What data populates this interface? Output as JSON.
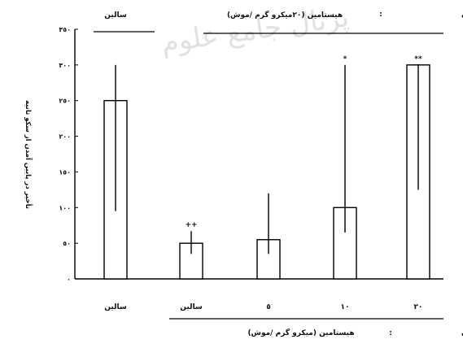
{
  "chart_data": {
    "type": "bar",
    "title": "",
    "ylabel": "تأخیر در پایین آمدن از سکو ثانیه",
    "ylim": [
      0,
      350
    ],
    "yticks": [
      0,
      50,
      100,
      150,
      200,
      250,
      300,
      350
    ],
    "ytick_labels": [
      "٠",
      "٥٠",
      "١٠٠",
      "١٥٠",
      "٢٠٠",
      "٢٥٠",
      "٣٠٠",
      "٣٥٠"
    ],
    "grid": false,
    "categories": [
      "سالین",
      "سالین",
      "٥",
      "١٠",
      "٢٠"
    ],
    "values": [
      250,
      50,
      55,
      100,
      300
    ],
    "error_low": [
      95,
      35,
      35,
      65,
      125
    ],
    "error_high": [
      300,
      67,
      120,
      300,
      300
    ],
    "significance": [
      "",
      "++",
      "",
      "*",
      "**"
    ],
    "pretraining_prefix": "تجویز قبل از آموزش",
    "pretraining_separator": ":",
    "pretraining_groups": [
      {
        "label": "سالین",
        "from": 0,
        "to": 0
      },
      {
        "label": "هیستامین (٢٠میکرو گرم /موش)",
        "from": 1,
        "to": 4
      }
    ],
    "pretest_prefix": "تجویز قبل از آزمون",
    "pretest_separator": ":",
    "pretest_label": "هیستامین (میکرو گرم /موش)",
    "watermark": "پرتال جامع علوم"
  },
  "colors": {
    "bar_fill": "#ffffff",
    "stroke": "#000000",
    "watermark": "#c9c9c9"
  }
}
